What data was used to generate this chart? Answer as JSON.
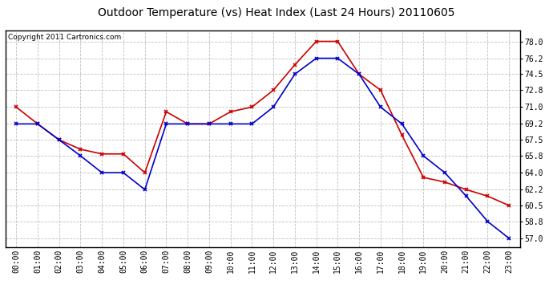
{
  "title": "Outdoor Temperature (vs) Heat Index (Last 24 Hours) 20110605",
  "copyright": "Copyright 2011 Cartronics.com",
  "hours": [
    "00:00",
    "01:00",
    "02:00",
    "03:00",
    "04:00",
    "05:00",
    "06:00",
    "07:00",
    "08:00",
    "09:00",
    "10:00",
    "11:00",
    "12:00",
    "13:00",
    "14:00",
    "15:00",
    "16:00",
    "17:00",
    "18:00",
    "19:00",
    "20:00",
    "21:00",
    "22:00",
    "23:00"
  ],
  "temp_blue": [
    69.2,
    69.2,
    67.5,
    65.8,
    64.0,
    64.0,
    62.2,
    69.2,
    69.2,
    69.2,
    69.2,
    69.2,
    71.0,
    74.5,
    76.2,
    76.2,
    74.5,
    71.0,
    69.2,
    65.8,
    64.0,
    61.5,
    58.8,
    57.0
  ],
  "heat_red": [
    71.0,
    69.2,
    67.5,
    66.5,
    66.0,
    66.0,
    64.0,
    70.5,
    69.2,
    69.2,
    70.5,
    71.0,
    72.8,
    75.5,
    78.0,
    78.0,
    74.5,
    72.8,
    68.0,
    63.5,
    63.0,
    62.2,
    61.5,
    60.5
  ],
  "y_ticks": [
    57.0,
    58.8,
    60.5,
    62.2,
    64.0,
    65.8,
    67.5,
    69.2,
    71.0,
    72.8,
    74.5,
    76.2,
    78.0
  ],
  "ylim": [
    56.1,
    79.2
  ],
  "color_blue": "#0000cc",
  "color_red": "#cc0000",
  "bg_color": "#ffffff",
  "grid_color": "#b0b0b0",
  "title_fontsize": 10,
  "copyright_fontsize": 6.5
}
